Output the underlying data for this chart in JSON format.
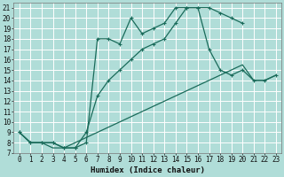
{
  "background_color": "#b0ddd8",
  "grid_color": "#ffffff",
  "line_color": "#1a6b5a",
  "xlabel": "Humidex (Indice chaleur)",
  "xlim": [
    -0.5,
    23.5
  ],
  "ylim": [
    7,
    21.5
  ],
  "xticks": [
    0,
    1,
    2,
    3,
    4,
    5,
    6,
    7,
    8,
    9,
    10,
    11,
    12,
    13,
    14,
    15,
    16,
    17,
    18,
    19,
    20,
    21,
    22,
    23
  ],
  "yticks": [
    7,
    8,
    9,
    10,
    11,
    12,
    13,
    14,
    15,
    16,
    17,
    18,
    19,
    20,
    21
  ],
  "curve1_x": [
    0,
    1,
    2,
    3,
    4,
    5,
    6,
    7,
    8,
    9,
    10,
    11,
    12,
    13,
    14,
    15,
    16,
    17,
    18,
    19,
    20
  ],
  "curve1_y": [
    9,
    8,
    8,
    8,
    7.5,
    7.5,
    8,
    18,
    18,
    17.5,
    20,
    18.5,
    19,
    19.5,
    21,
    21,
    21,
    21,
    20.5,
    20,
    19.5
  ],
  "curve2_x": [
    0,
    1,
    2,
    3,
    4,
    5,
    6,
    7,
    8,
    9,
    10,
    11,
    12,
    13,
    14,
    15,
    16,
    17,
    18,
    19,
    20,
    21,
    22,
    23
  ],
  "curve2_y": [
    9,
    8,
    8,
    8,
    7.5,
    7.5,
    9,
    12.5,
    14,
    15,
    16,
    17,
    17.5,
    18,
    19.5,
    21,
    21,
    17,
    15,
    14.5,
    15,
    14,
    14,
    14.5
  ],
  "curve3_x": [
    0,
    1,
    2,
    3,
    4,
    5,
    6,
    7,
    8,
    9,
    10,
    11,
    12,
    13,
    14,
    15,
    16,
    17,
    18,
    19,
    20,
    21,
    22,
    23
  ],
  "curve3_y": [
    9,
    8,
    8,
    7.5,
    7.5,
    8,
    8.5,
    9,
    9.5,
    10,
    10.5,
    11,
    11.5,
    12,
    12.5,
    13,
    13.5,
    14,
    14.5,
    15,
    15.5,
    14,
    14,
    14.5
  ],
  "marker": "+",
  "markersize": 3.5,
  "linewidth": 0.9,
  "tick_fontsize": 5.5,
  "xlabel_fontsize": 6.5
}
